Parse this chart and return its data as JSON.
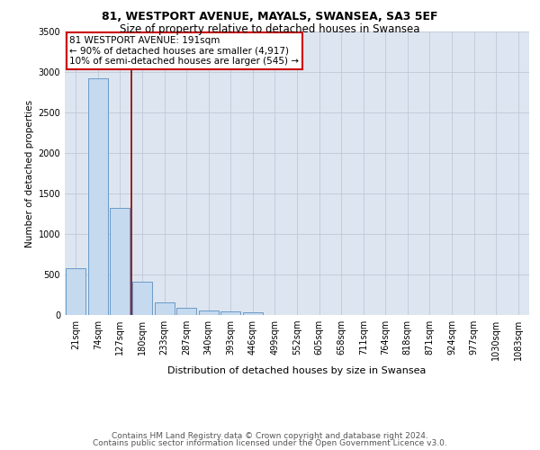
{
  "title1": "81, WESTPORT AVENUE, MAYALS, SWANSEA, SA3 5EF",
  "title2": "Size of property relative to detached houses in Swansea",
  "xlabel": "Distribution of detached houses by size in Swansea",
  "ylabel": "Number of detached properties",
  "categories": [
    "21sqm",
    "74sqm",
    "127sqm",
    "180sqm",
    "233sqm",
    "287sqm",
    "340sqm",
    "393sqm",
    "446sqm",
    "499sqm",
    "552sqm",
    "605sqm",
    "658sqm",
    "711sqm",
    "764sqm",
    "818sqm",
    "871sqm",
    "924sqm",
    "977sqm",
    "1030sqm",
    "1083sqm"
  ],
  "values": [
    575,
    2920,
    1320,
    415,
    160,
    85,
    55,
    50,
    30,
    0,
    0,
    0,
    0,
    0,
    0,
    0,
    0,
    0,
    0,
    0,
    0
  ],
  "bar_color": "#c5d9ef",
  "bar_edgecolor": "#5a8fc0",
  "vline_x": 2.5,
  "vline_color": "#8b0000",
  "annotation_line1": "81 WESTPORT AVENUE: 191sqm",
  "annotation_line2": "← 90% of detached houses are smaller (4,917)",
  "annotation_line3": "10% of semi-detached houses are larger (545) →",
  "annotation_box_color": "white",
  "annotation_box_edgecolor": "#cc0000",
  "ylim": [
    0,
    3500
  ],
  "yticks": [
    0,
    500,
    1000,
    1500,
    2000,
    2500,
    3000,
    3500
  ],
  "background_color": "#dde6f0",
  "grid_color": "#c0c8d8",
  "footer1": "Contains HM Land Registry data © Crown copyright and database right 2024.",
  "footer2": "Contains public sector information licensed under the Open Government Licence v3.0.",
  "title1_fontsize": 9,
  "title2_fontsize": 8.5,
  "xlabel_fontsize": 8,
  "ylabel_fontsize": 7.5,
  "tick_fontsize": 7,
  "annotation_fontsize": 7.5,
  "footer_fontsize": 6.5
}
